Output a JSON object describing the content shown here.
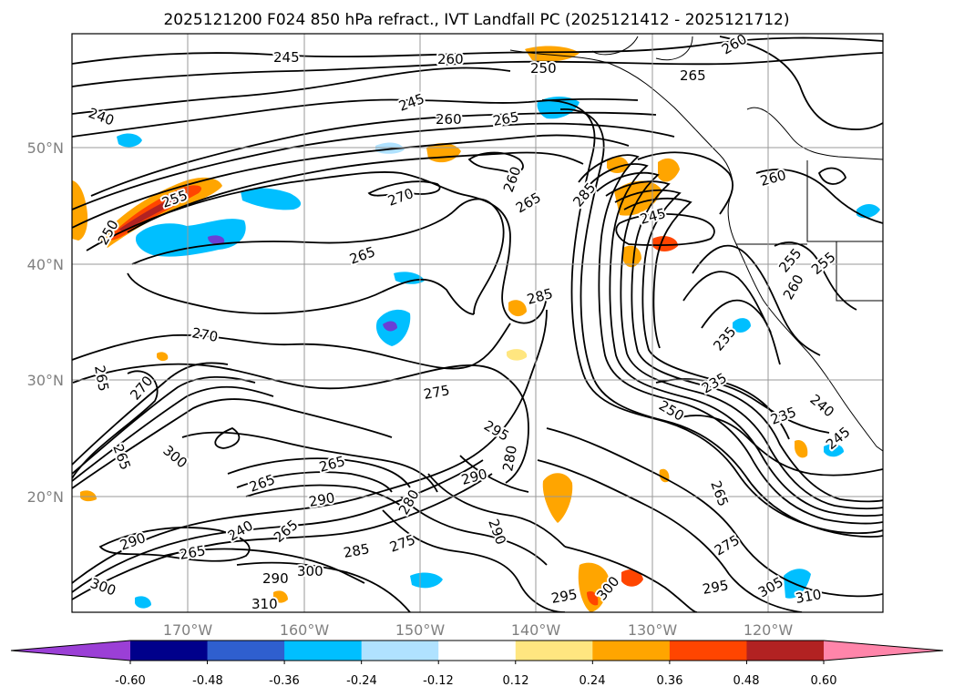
{
  "title": "2025121200 F024 850 hPa refract., IVT Landfall PC (2025121412 - 2025121712)",
  "map": {
    "lat_labels": [
      "50°N",
      "40°N",
      "30°N",
      "20°N"
    ],
    "lon_labels": [
      "170°W",
      "160°W",
      "150°W",
      "140°W",
      "130°W",
      "120°W"
    ],
    "gridlines": true
  },
  "colorbar": {
    "ticks": [
      "-0.60",
      "-0.48",
      "-0.36",
      "-0.24",
      "-0.12",
      "0.12",
      "0.24",
      "0.36",
      "0.48",
      "0.60"
    ],
    "colors": [
      "#9b3fd6",
      "#00008b",
      "#2f5fcf",
      "#00bfff",
      "#b0e2ff",
      "#ffffff",
      "#ffe680",
      "#ffa500",
      "#ff4500",
      "#b22222",
      "#ff85aa"
    ]
  },
  "contour_labels": [
    "245",
    "260",
    "250",
    "260",
    "265",
    "240",
    "245",
    "260",
    "265",
    "270",
    "260",
    "265",
    "285",
    "245",
    "260",
    "255",
    "250",
    "265",
    "270",
    "265",
    "285",
    "255",
    "260",
    "235",
    "235",
    "250",
    "265",
    "275",
    "295",
    "280",
    "290",
    "270",
    "265",
    "265",
    "290",
    "280",
    "290",
    "265",
    "240",
    "265",
    "290",
    "265",
    "285",
    "275",
    "290",
    "300",
    "300",
    "300",
    "295",
    "300",
    "295",
    "305",
    "310",
    "310",
    "245",
    "240",
    "235",
    "255",
    "275"
  ]
}
